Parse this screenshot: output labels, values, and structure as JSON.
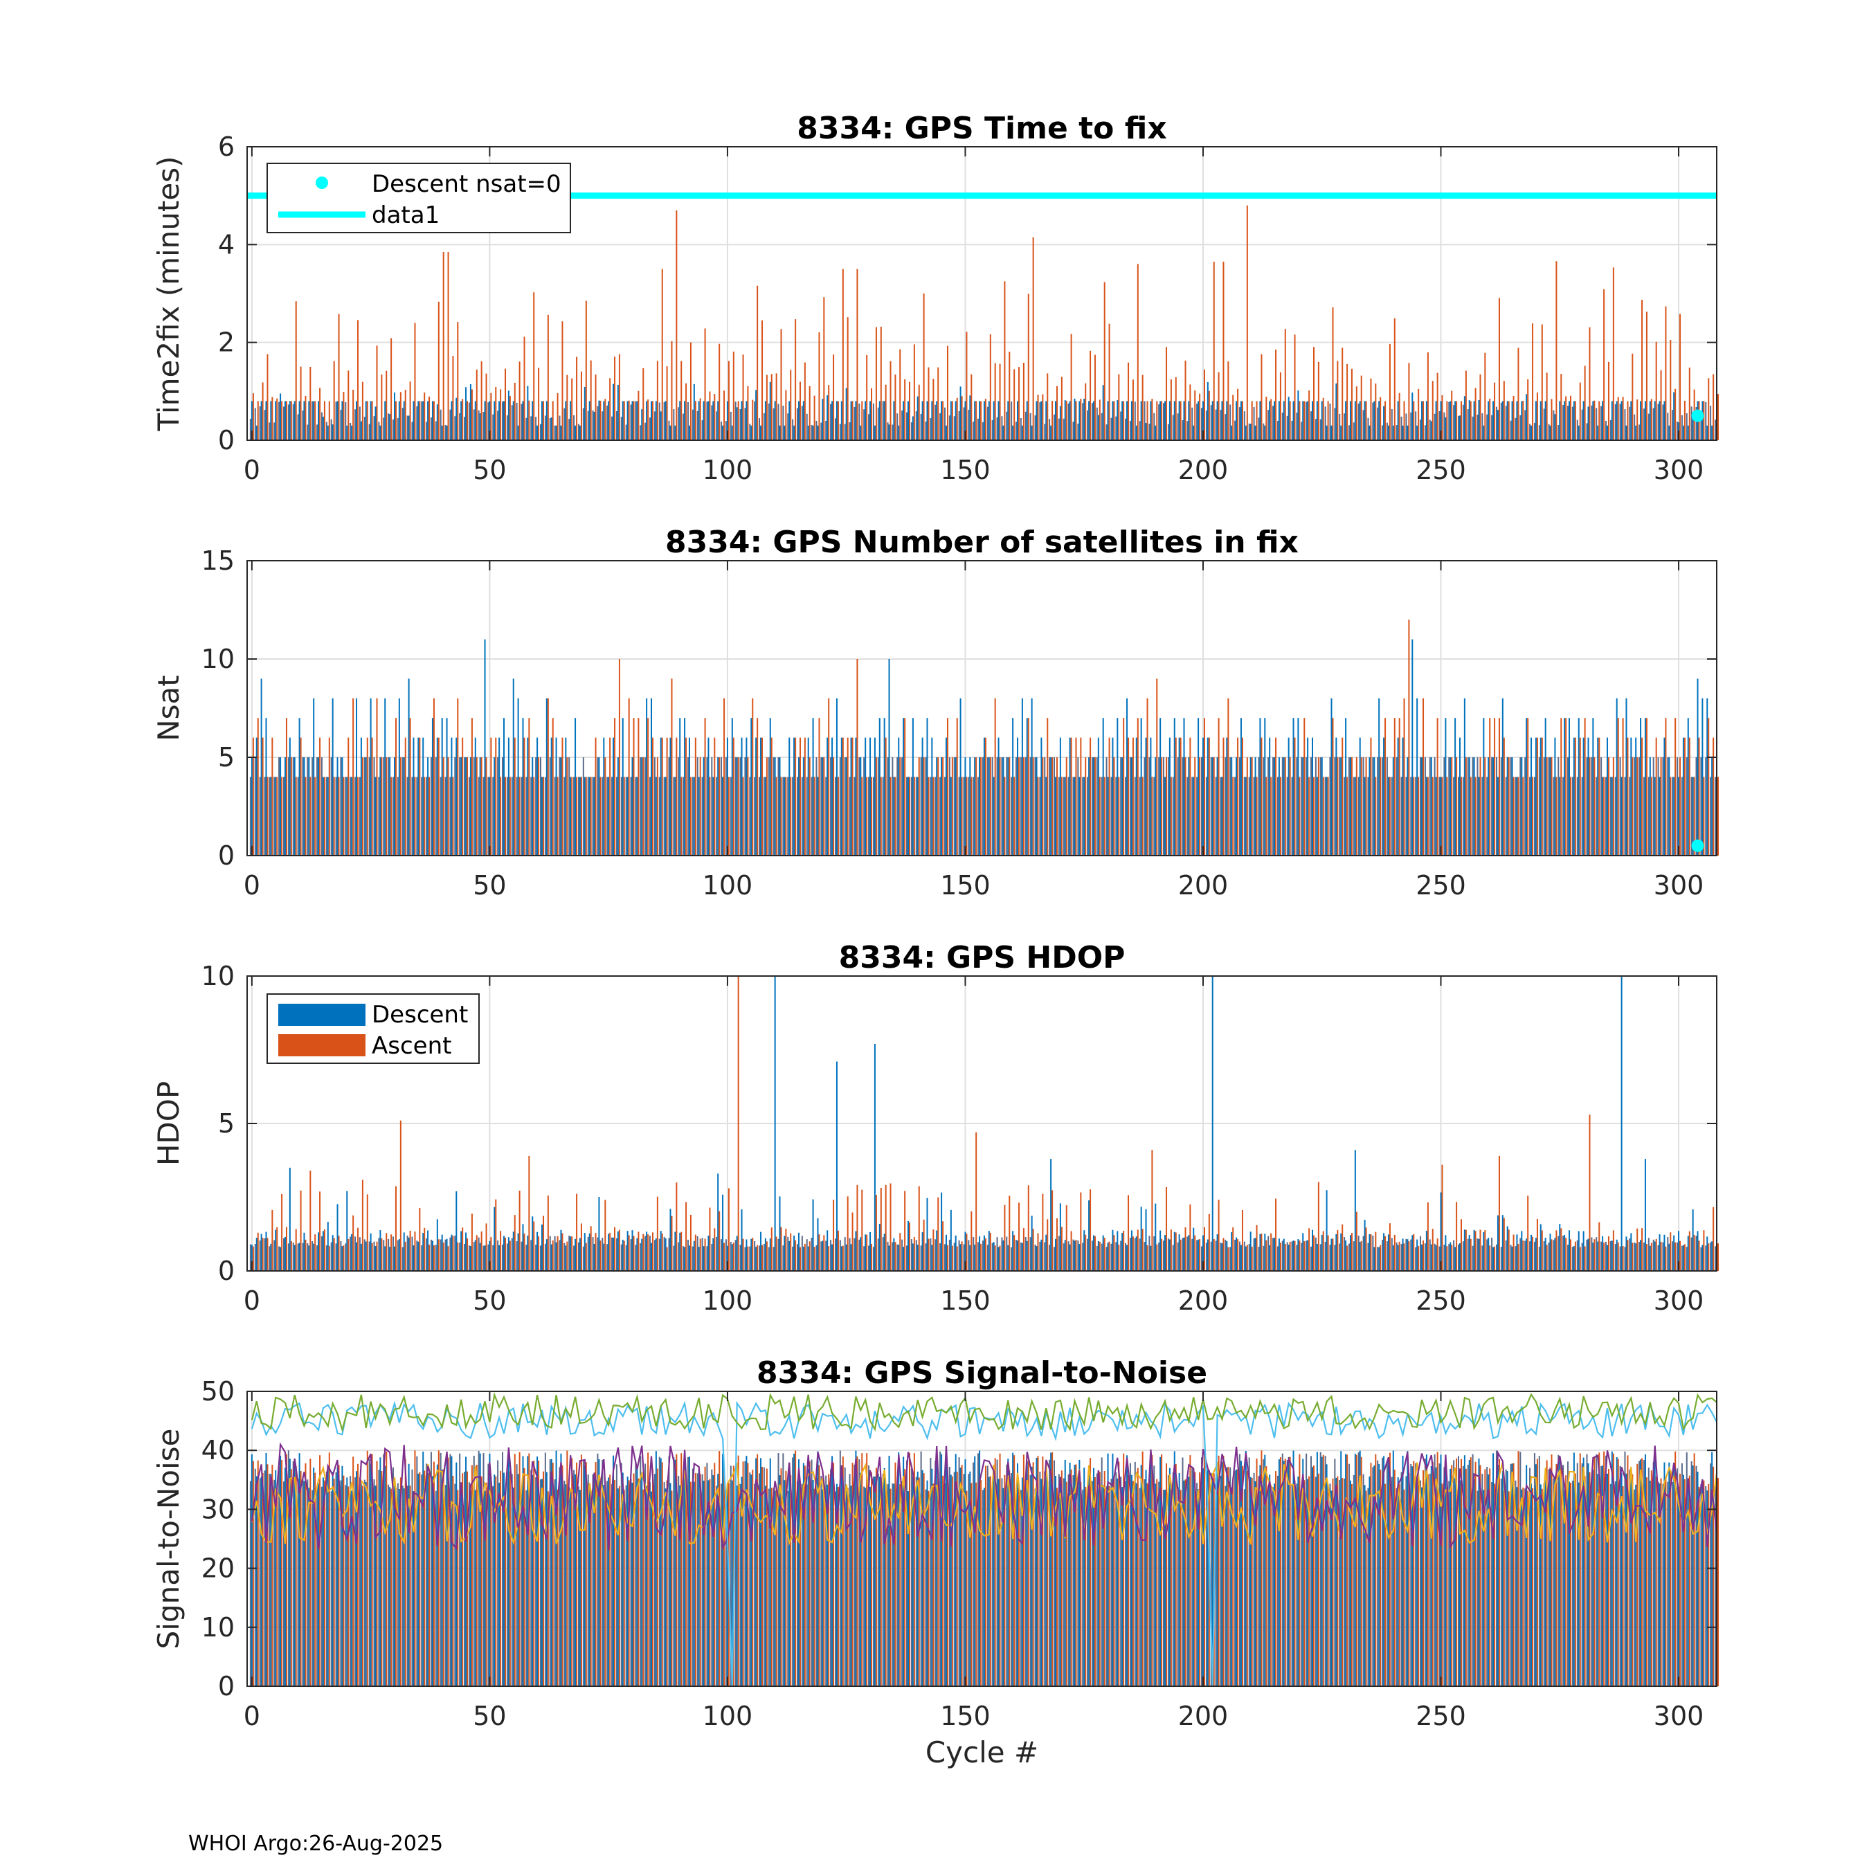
{
  "footer": "WHOI Argo:26-Aug-2025",
  "colors": {
    "descent": "#0072BD",
    "ascent": "#D95319",
    "cyan": "#00FFFF",
    "gray": "#404040",
    "lightblue": "#4DBEEE",
    "green": "#77AC30",
    "orange": "#EDB120",
    "purple": "#7E2F8E"
  },
  "chart_data": [
    {
      "type": "bar",
      "title": "8334: GPS Time to fix",
      "xlabel": "",
      "ylabel": "Time2fix (minutes)",
      "xlim": [
        -1,
        308
      ],
      "ylim": [
        0,
        6
      ],
      "xticks": [
        0,
        50,
        100,
        150,
        200,
        250,
        300
      ],
      "yticks": [
        0,
        2,
        4,
        6
      ],
      "grid": true,
      "legend": {
        "position": "top-left",
        "entries": [
          "Descent nsat=0",
          "data1"
        ]
      },
      "series": [
        {
          "name": "Descent",
          "note": "per-cycle bar series, approx 0.3–0.8 min, cycles 0–308"
        },
        {
          "name": "Ascent",
          "note": "per-cycle bar series, approx 0.3–4.8 min, peaks ~4.8 at cycle 209, ~4.7 at cycle 89"
        },
        {
          "name": "data1",
          "type": "line",
          "x": [
            -1,
            308
          ],
          "y": [
            5,
            5
          ]
        },
        {
          "name": "Descent nsat=0",
          "type": "scatter",
          "x": [
            304
          ],
          "y": [
            0.5
          ]
        }
      ]
    },
    {
      "type": "bar",
      "title": "8334: GPS Number of satellites in fix",
      "xlabel": "",
      "ylabel": "Nsat",
      "xlim": [
        -1,
        308
      ],
      "ylim": [
        0,
        15
      ],
      "xticks": [
        0,
        50,
        100,
        150,
        200,
        250,
        300
      ],
      "yticks": [
        0,
        5,
        10,
        15
      ],
      "grid": true,
      "series": [
        {
          "name": "Descent",
          "note": "approx 4–9 satellites, peaks 11 at cycle 49, 11 at cycle 244"
        },
        {
          "name": "Ascent",
          "note": "approx 4–8 satellites, peak 12 at cycle 243, 10 at cycles 77 and 127"
        },
        {
          "name": "Descent nsat=0",
          "type": "scatter",
          "x": [
            304
          ],
          "y": [
            0.5
          ]
        }
      ]
    },
    {
      "type": "bar",
      "title": "8334: GPS HDOP",
      "xlabel": "",
      "ylabel": "HDOP",
      "xlim": [
        -1,
        308
      ],
      "ylim": [
        0,
        10
      ],
      "xticks": [
        0,
        50,
        100,
        150,
        200,
        250,
        300
      ],
      "yticks": [
        0,
        5,
        10
      ],
      "grid": true,
      "legend": {
        "position": "top-left",
        "entries": [
          "Descent",
          "Ascent"
        ]
      },
      "series": [
        {
          "name": "Descent",
          "note": "mostly 0.7–1.5, spikes 10 at cycles 110, 202, 288; 7.1 at 123; 7.7 at 131"
        },
        {
          "name": "Ascent",
          "note": "mostly 0.7–2, spikes 10 at cycle 102; 5.1 at 31; 5.3 at 281"
        }
      ]
    },
    {
      "type": "bar",
      "title": "8334: GPS Signal-to-Noise",
      "xlabel": "Cycle #",
      "ylabel": "Signal-to-Noise",
      "xlim": [
        -1,
        308
      ],
      "ylim": [
        0,
        50
      ],
      "xticks": [
        0,
        50,
        100,
        150,
        200,
        250,
        300
      ],
      "yticks": [
        0,
        10,
        20,
        30,
        40,
        50
      ],
      "grid": true,
      "series": [
        {
          "name": "bars",
          "note": "per-cycle bars approx 33–40"
        },
        {
          "name": "max SNR (green)",
          "type": "line",
          "note": "approx 43–50"
        },
        {
          "name": "SNR (light blue)",
          "type": "line",
          "note": "approx 41–48, dips to 0 near cycles 101 and 202"
        },
        {
          "name": "mean SNR (orange)",
          "type": "line",
          "note": "approx 22–38"
        },
        {
          "name": "min SNR (purple)",
          "type": "line",
          "note": "approx 18–43"
        }
      ]
    }
  ]
}
